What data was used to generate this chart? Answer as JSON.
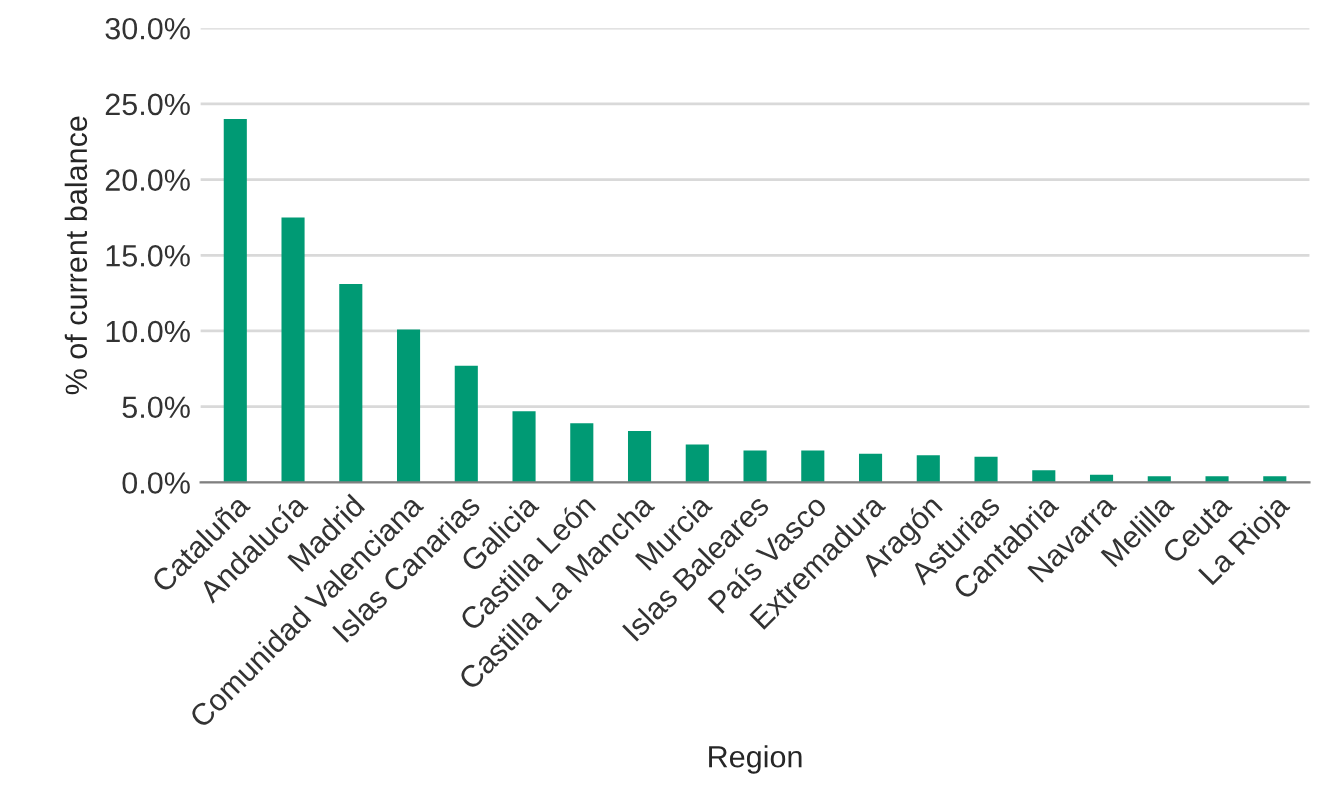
{
  "chart_data": {
    "type": "bar",
    "xlabel": "Region",
    "ylabel": "% of current balance",
    "categories": [
      "Cataluña",
      "Andalucía",
      "Madrid",
      "Comunidad Valenciana",
      "Islas Canarias",
      "Galicia",
      "Castilla León",
      "Castilla La Mancha",
      "Murcia",
      "Islas Baleares",
      "País Vasco",
      "Extremadura",
      "Aragón",
      "Asturias",
      "Cantabria",
      "Navarra",
      "Melilla",
      "Ceuta",
      "La Rioja"
    ],
    "values": [
      24.0,
      17.5,
      13.1,
      10.1,
      7.7,
      4.7,
      3.9,
      3.4,
      2.5,
      2.1,
      2.1,
      1.9,
      1.8,
      1.7,
      0.8,
      0.5,
      0.4,
      0.4,
      0.4
    ],
    "color": "#009a74",
    "ylim": [
      0,
      30
    ],
    "yticks": [
      {
        "value": 0,
        "label": "0.0%"
      },
      {
        "value": 5,
        "label": "5.0%"
      },
      {
        "value": 10,
        "label": "10.0%"
      },
      {
        "value": 15,
        "label": "15.0%"
      },
      {
        "value": 20,
        "label": "20.0%"
      },
      {
        "value": 25,
        "label": "25.0%"
      },
      {
        "value": 30,
        "label": "30.0%"
      }
    ],
    "grid": "y",
    "legend": false
  }
}
